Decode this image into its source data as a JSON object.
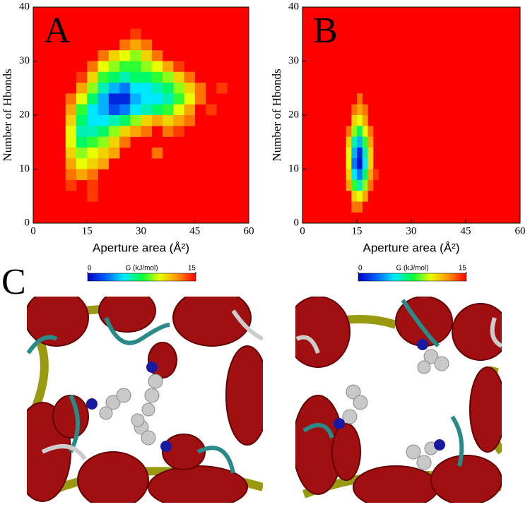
{
  "chart_data": [
    {
      "type": "heatmap",
      "panel": "A",
      "x_label": "Aperture area (Å²)",
      "y_label": "Number of Hbonds",
      "xlim": [
        0,
        60
      ],
      "ylim": [
        0,
        40
      ],
      "xticks": [
        0,
        15,
        30,
        45,
        60
      ],
      "yticks": [
        0,
        10,
        20,
        30,
        40
      ],
      "x": [
        27,
        24,
        27,
        30,
        18,
        21,
        24,
        27,
        30,
        33,
        15,
        18,
        21,
        24,
        27,
        30,
        33,
        36,
        39,
        12,
        15,
        18,
        21,
        24,
        27,
        30,
        33,
        36,
        39,
        42,
        12,
        15,
        18,
        21,
        24,
        27,
        30,
        33,
        36,
        39,
        42,
        45,
        51,
        9,
        12,
        15,
        18,
        21,
        24,
        27,
        30,
        33,
        36,
        39,
        42,
        45,
        9,
        12,
        15,
        18,
        21,
        24,
        27,
        30,
        33,
        36,
        39,
        42,
        48,
        9,
        12,
        15,
        18,
        21,
        24,
        27,
        30,
        33,
        36,
        39,
        42,
        9,
        12,
        15,
        18,
        21,
        24,
        27,
        30,
        36,
        39,
        9,
        12,
        15,
        18,
        21,
        24,
        9,
        12,
        15,
        18,
        21,
        33,
        9,
        12,
        15,
        18,
        9,
        12,
        15,
        9,
        15,
        15
      ],
      "y": [
        34,
        32,
        32,
        32,
        30,
        30,
        30,
        30,
        30,
        30,
        28,
        28,
        28,
        28,
        28,
        28,
        28,
        28,
        28,
        26,
        26,
        26,
        26,
        26,
        26,
        26,
        26,
        26,
        26,
        26,
        24,
        24,
        24,
        24,
        24,
        24,
        24,
        24,
        24,
        24,
        24,
        24,
        24,
        22,
        22,
        22,
        22,
        22,
        22,
        22,
        22,
        22,
        22,
        22,
        22,
        22,
        20,
        20,
        20,
        20,
        20,
        20,
        20,
        20,
        20,
        20,
        20,
        20,
        20,
        18,
        18,
        18,
        18,
        18,
        18,
        18,
        18,
        18,
        18,
        18,
        18,
        16,
        16,
        16,
        16,
        16,
        16,
        16,
        16,
        16,
        16,
        14,
        14,
        14,
        14,
        14,
        14,
        12,
        12,
        12,
        12,
        12,
        12,
        10,
        10,
        10,
        10,
        8,
        8,
        8,
        6,
        6,
        4
      ],
      "values": [
        14,
        13,
        12,
        13,
        13,
        11,
        10,
        9,
        11,
        13,
        13,
        10,
        9,
        8,
        8,
        9,
        10,
        12,
        14,
        14,
        11,
        8,
        7,
        6,
        7,
        7,
        8,
        9,
        11,
        13,
        12,
        9,
        6,
        4,
        3,
        5,
        5,
        6,
        7,
        9,
        11,
        13,
        14,
        13,
        10,
        7,
        4,
        1,
        1,
        4,
        5,
        5,
        6,
        8,
        10,
        13,
        12,
        8,
        5,
        4,
        2,
        3,
        5,
        6,
        7,
        8,
        10,
        12,
        14,
        11,
        7,
        5,
        5,
        6,
        7,
        9,
        11,
        12,
        11,
        12,
        13,
        10,
        6,
        6,
        7,
        9,
        11,
        12,
        13,
        13,
        14,
        10,
        7,
        8,
        9,
        11,
        13,
        11,
        9,
        10,
        11,
        12,
        13,
        12,
        10,
        11,
        12,
        13,
        12,
        13,
        14,
        14,
        14
      ],
      "colorbar": {
        "label": "G (kJ/mol)",
        "lim": [
          0,
          15
        ],
        "ticks": [
          0,
          15
        ]
      },
      "colorscale": [
        "#0000c8",
        "#0060ff",
        "#00e8ff",
        "#00ff40",
        "#e8ff00",
        "#ff9000",
        "#ff0000"
      ]
    },
    {
      "type": "heatmap",
      "panel": "B",
      "x_label": "Aperture area (Å²)",
      "y_label": "Number of Hbonds",
      "xlim": [
        0,
        60
      ],
      "ylim": [
        0,
        40
      ],
      "xticks": [
        0,
        15,
        30,
        45,
        60
      ],
      "yticks": [
        0,
        10,
        20,
        30,
        40
      ],
      "x": [
        15,
        13.5,
        15,
        16.5,
        13.5,
        15,
        16.5,
        12,
        13.5,
        15,
        16.5,
        18,
        12,
        13.5,
        15,
        16.5,
        18,
        12,
        13.5,
        15,
        16.5,
        18,
        12,
        13.5,
        15,
        16.5,
        18,
        12,
        13.5,
        15,
        16.5,
        18,
        19.5,
        12,
        13.5,
        15,
        16.5,
        18,
        13.5,
        15,
        16.5,
        13.5,
        15
      ],
      "y": [
        22,
        20,
        20,
        20,
        18,
        18,
        18,
        16,
        16,
        16,
        16,
        16,
        14,
        14,
        14,
        14,
        14,
        12,
        12,
        12,
        12,
        12,
        10,
        10,
        10,
        10,
        10,
        8,
        8,
        8,
        8,
        8,
        8,
        6,
        6,
        6,
        6,
        6,
        4,
        4,
        4,
        2,
        2
      ],
      "values": [
        13,
        13,
        12,
        13,
        11,
        10,
        12,
        13,
        9,
        7,
        10,
        13,
        11,
        6,
        4,
        8,
        12,
        10,
        4,
        1,
        6,
        11,
        10,
        3,
        0.5,
        5,
        11,
        11,
        5,
        3,
        7,
        12,
        14,
        12,
        8,
        6,
        9,
        13,
        11,
        10,
        12,
        13,
        13
      ],
      "colorbar": {
        "label": "G (kJ/mol)",
        "lim": [
          0,
          15
        ],
        "ticks": [
          0,
          15
        ]
      },
      "colorscale": [
        "#0000c8",
        "#0060ff",
        "#00e8ff",
        "#00ff40",
        "#e8ff00",
        "#ff9000",
        "#ff0000"
      ]
    }
  ],
  "panel_c": {
    "label": "C"
  }
}
